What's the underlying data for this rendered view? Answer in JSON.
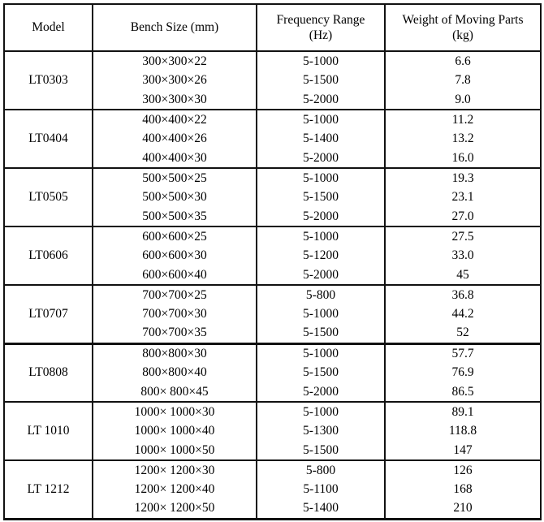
{
  "table": {
    "headers": [
      "Model",
      "Bench Size (mm)",
      "Frequency Range (Hz)",
      "Weight of Moving Parts (kg)"
    ],
    "groups": [
      {
        "model": "LT0303",
        "rows": [
          [
            "300×300×22",
            "5-1000",
            "6.6"
          ],
          [
            "300×300×26",
            "5-1500",
            "7.8"
          ],
          [
            "300×300×30",
            "5-2000",
            "9.0"
          ]
        ]
      },
      {
        "model": "LT0404",
        "rows": [
          [
            "400×400×22",
            "5-1000",
            "11.2"
          ],
          [
            "400×400×26",
            "5-1400",
            "13.2"
          ],
          [
            "400×400×30",
            "5-2000",
            "16.0"
          ]
        ]
      },
      {
        "model": "LT0505",
        "rows": [
          [
            "500×500×25",
            "5-1000",
            "19.3"
          ],
          [
            "500×500×30",
            "5-1500",
            "23.1"
          ],
          [
            "500×500×35",
            "5-2000",
            "27.0"
          ]
        ]
      },
      {
        "model": "LT0606",
        "rows": [
          [
            "600×600×25",
            "5-1000",
            "27.5"
          ],
          [
            "600×600×30",
            "5-1200",
            "33.0"
          ],
          [
            "600×600×40",
            "5-2000",
            "45"
          ]
        ]
      },
      {
        "model": "LT0707",
        "rows": [
          [
            "700×700×25",
            "5-800",
            "36.8"
          ],
          [
            "700×700×30",
            "5-1000",
            "44.2"
          ],
          [
            "700×700×35",
            "5-1500",
            "52"
          ]
        ]
      },
      {
        "model": "LT0808",
        "rows": [
          [
            "800×800×30",
            "5-1000",
            "57.7"
          ],
          [
            "800×800×40",
            "5-1500",
            "76.9"
          ],
          [
            "800× 800×45",
            "5-2000",
            "86.5"
          ]
        ]
      },
      {
        "model": "LT 1010",
        "rows": [
          [
            "1000× 1000×30",
            "5-1000",
            "89.1"
          ],
          [
            "1000× 1000×40",
            "5-1300",
            "118.8"
          ],
          [
            "1000× 1000×50",
            "5-1500",
            "147"
          ]
        ]
      },
      {
        "model": "LT 1212",
        "rows": [
          [
            "1200× 1200×30",
            "5-800",
            "126"
          ],
          [
            "1200× 1200×40",
            "5-1100",
            "168"
          ],
          [
            "1200× 1200×50",
            "5-1400",
            "210"
          ]
        ]
      }
    ]
  }
}
